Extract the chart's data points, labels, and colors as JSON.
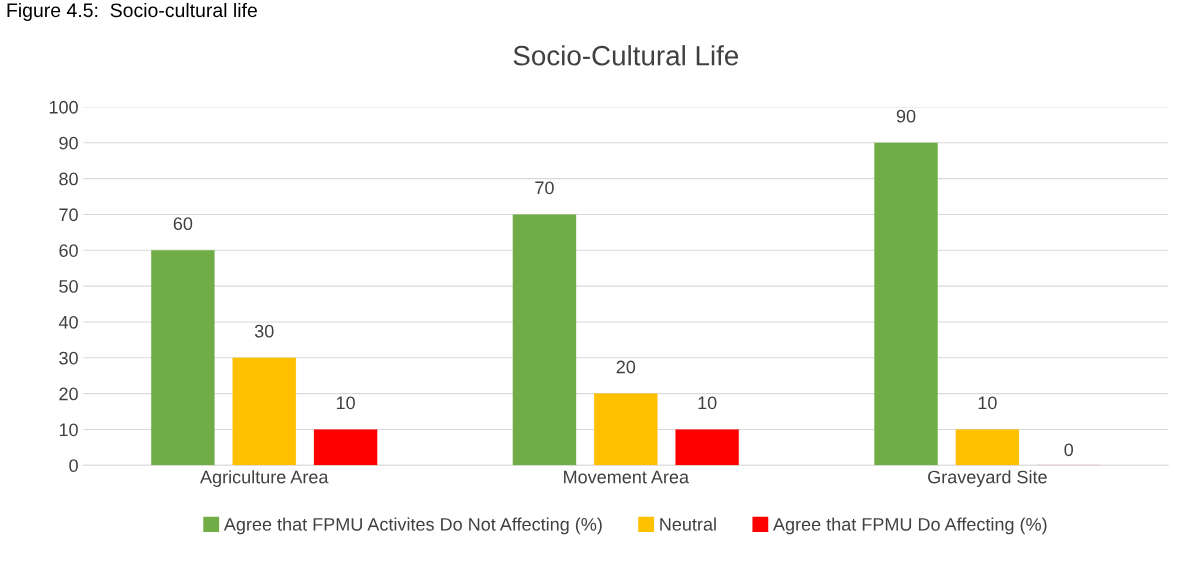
{
  "chart_data": {
    "type": "bar",
    "title": "Socio-Cultural Life",
    "annotations": [
      "Figure 4.5:  Socio-cultural life"
    ],
    "categories": [
      "Agriculture Area",
      "Movement Area",
      "Graveyard Site"
    ],
    "series": [
      {
        "name": "Agree that FPMU Activites Do Not Affecting (%)",
        "color": "#70ad47",
        "values": [
          60,
          70,
          90
        ]
      },
      {
        "name": "Neutral",
        "color": "#ffc000",
        "values": [
          30,
          20,
          10
        ]
      },
      {
        "name": "Agree that FPMU Do Affecting (%)",
        "color": "#ff0000",
        "values": [
          10,
          10,
          0
        ]
      }
    ],
    "ylim": [
      0,
      100
    ],
    "yticks": [
      0,
      10,
      20,
      30,
      40,
      50,
      60,
      70,
      80,
      90,
      100
    ],
    "grid": "y",
    "legend": "bottom",
    "data_labels": true
  }
}
